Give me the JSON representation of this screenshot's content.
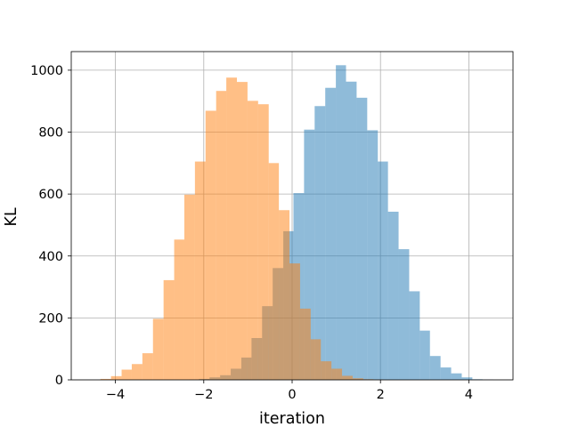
{
  "chart_data": {
    "type": "histogram",
    "title": "",
    "xlabel": "iteration",
    "ylabel": "KL",
    "xlim": [
      -5,
      5
    ],
    "ylim": [
      0,
      1060
    ],
    "grid": true,
    "legend": "none",
    "xticks": [
      -4,
      -2,
      0,
      2,
      4
    ],
    "xtick_labels": [
      "−4",
      "−2",
      "0",
      "2",
      "4"
    ],
    "yticks": [
      0,
      200,
      400,
      600,
      800,
      1000
    ],
    "ytick_labels": [
      "0",
      "200",
      "400",
      "600",
      "800",
      "1000"
    ],
    "series": [
      {
        "color": "#1f77b4",
        "alpha": 0.5,
        "bin_edges": [
          -2.34,
          -2.11,
          -1.87,
          -1.63,
          -1.39,
          -1.15,
          -0.92,
          -0.68,
          -0.44,
          -0.2,
          0.03,
          0.27,
          0.51,
          0.75,
          0.99,
          1.22,
          1.46,
          1.7,
          1.94,
          2.17,
          2.41,
          2.65,
          2.89,
          3.12,
          3.36,
          3.6,
          3.84,
          4.08,
          4.31,
          4.55,
          4.79
        ],
        "counts": [
          1,
          3,
          8,
          15,
          36,
          72,
          135,
          238,
          361,
          480,
          603,
          808,
          884,
          943,
          1016,
          963,
          911,
          806,
          705,
          543,
          422,
          286,
          159,
          77,
          40,
          21,
          8,
          2,
          1,
          0
        ]
      },
      {
        "color": "#ff7f0e",
        "alpha": 0.5,
        "bin_edges": [
          -4.34,
          -4.1,
          -3.86,
          -3.63,
          -3.39,
          -3.15,
          -2.91,
          -2.67,
          -2.44,
          -2.2,
          -1.96,
          -1.72,
          -1.49,
          -1.25,
          -1.01,
          -0.77,
          -0.53,
          -0.3,
          -0.06,
          0.18,
          0.42,
          0.65,
          0.89,
          1.13,
          1.37,
          1.61,
          1.84,
          2.08,
          2.32,
          2.56,
          2.79
        ],
        "counts": [
          3,
          12,
          33,
          51,
          86,
          197,
          322,
          453,
          598,
          705,
          869,
          933,
          976,
          962,
          901,
          890,
          700,
          548,
          376,
          230,
          131,
          60,
          36,
          13,
          5,
          2,
          1,
          0,
          0,
          0
        ]
      }
    ]
  }
}
